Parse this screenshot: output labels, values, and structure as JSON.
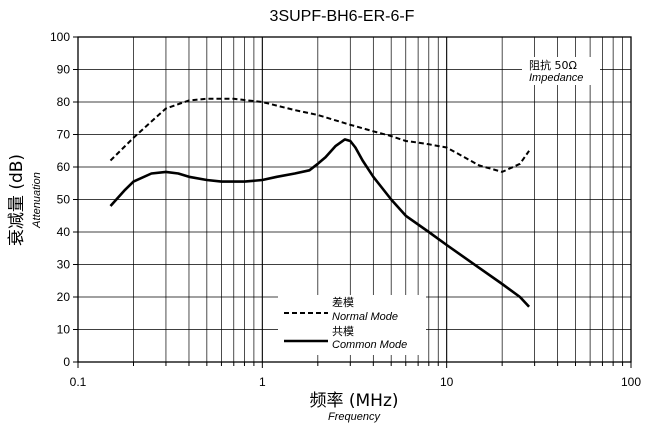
{
  "chart_data": {
    "type": "line",
    "title": "3SUPF-BH6-ER-6-F",
    "xlabel_zh": "频率 (MHz)",
    "xlabel_en": "Frequency",
    "ylabel_zh": "衰减量 (dB)",
    "ylabel_en": "Attenuation",
    "x_scale": "log",
    "xlim": [
      0.1,
      100
    ],
    "ylim": [
      0,
      100
    ],
    "x_ticks": [
      "0.1",
      "1",
      "10",
      "100"
    ],
    "y_ticks": [
      "0",
      "10",
      "20",
      "30",
      "40",
      "50",
      "60",
      "70",
      "80",
      "90",
      "100"
    ],
    "grid": true,
    "impedance_note_zh": "阻抗 50Ω",
    "impedance_note_en": "Impedance",
    "legend": {
      "placement": "bottom-center",
      "entries": [
        {
          "label_zh": "差模",
          "label_en": "Normal Mode",
          "style": "dashed"
        },
        {
          "label_zh": "共模",
          "label_en": "Common Mode",
          "style": "solid"
        }
      ]
    },
    "series": [
      {
        "style": "dashed",
        "x": [
          0.15,
          0.2,
          0.25,
          0.3,
          0.4,
          0.5,
          0.7,
          1.0,
          1.5,
          2.0,
          3.0,
          4.0,
          5.0,
          6.0,
          7.0,
          8.0,
          10,
          15,
          20,
          25,
          28
        ],
        "y": [
          62,
          69,
          74,
          78,
          80.5,
          81,
          81,
          80,
          77.5,
          76,
          73,
          71,
          69.5,
          68,
          67.5,
          67,
          66,
          60.5,
          58.5,
          61,
          65
        ]
      },
      {
        "style": "solid",
        "x": [
          0.15,
          0.18,
          0.2,
          0.25,
          0.3,
          0.35,
          0.4,
          0.5,
          0.6,
          0.7,
          0.8,
          1.0,
          1.2,
          1.5,
          1.8,
          2.0,
          2.2,
          2.5,
          2.8,
          3.0,
          3.2,
          3.5,
          4.0,
          5.0,
          6.0,
          8.0,
          10,
          15,
          20,
          25,
          28
        ],
        "y": [
          48,
          53,
          55.5,
          58,
          58.5,
          58,
          57,
          56,
          55.5,
          55.5,
          55.5,
          56,
          57,
          58,
          59,
          61,
          63,
          66.5,
          68.5,
          68,
          66,
          62,
          57,
          50,
          45,
          40,
          36,
          29,
          24,
          20,
          17
        ]
      }
    ]
  }
}
